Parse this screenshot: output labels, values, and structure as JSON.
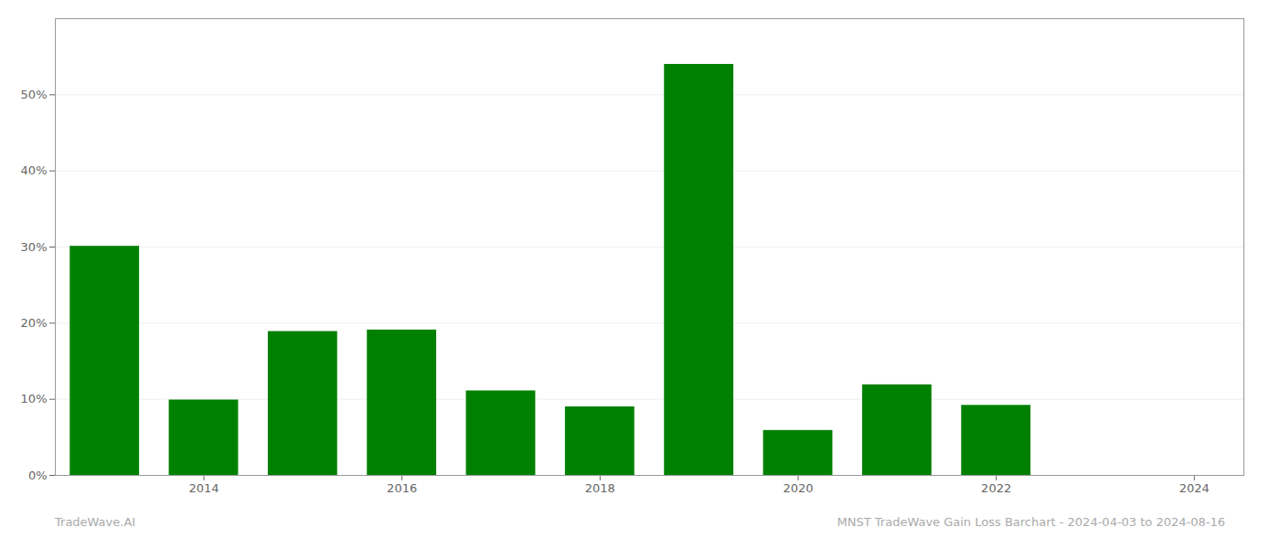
{
  "chart_data": {
    "type": "bar",
    "x": [
      2013,
      2014,
      2015,
      2016,
      2017,
      2018,
      2019,
      2020,
      2021,
      2022,
      2023
    ],
    "values": [
      0.301,
      0.099,
      0.189,
      0.191,
      0.111,
      0.09,
      0.54,
      0.059,
      0.119,
      0.092,
      0.0
    ],
    "color": "#008000",
    "xlim": [
      2012.5,
      2024.5
    ],
    "xticks": [
      2014,
      2016,
      2018,
      2020,
      2022,
      2024
    ],
    "ylim": [
      0,
      0.6
    ],
    "yticks": [
      {
        "value": 0.0,
        "label": "0%"
      },
      {
        "value": 0.1,
        "label": "10%"
      },
      {
        "value": 0.2,
        "label": "20%"
      },
      {
        "value": 0.3,
        "label": "30%"
      },
      {
        "value": 0.4,
        "label": "40%"
      },
      {
        "value": 0.5,
        "label": "50%"
      }
    ],
    "grid": true,
    "annotations": [
      "TradeWave.AI",
      "MNST TradeWave Gain Loss Barchart - 2024-04-03 to 2024-08-16"
    ]
  }
}
